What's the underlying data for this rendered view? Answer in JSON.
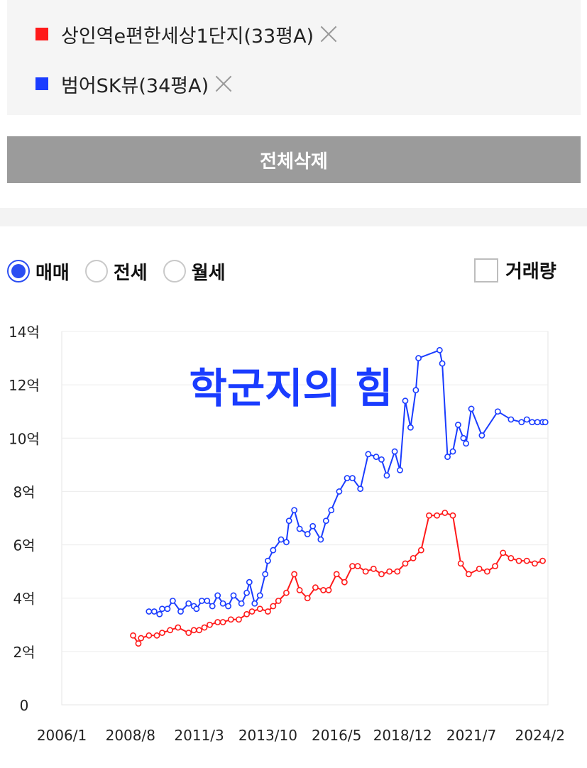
{
  "compare": {
    "items": [
      {
        "label": "상인역e편한세상1단지(33평A)",
        "color": "#ff1a1a"
      },
      {
        "label": "범어SK뷰(34평A)",
        "color": "#1a3cff"
      }
    ]
  },
  "actions": {
    "delete_all": "전체삭제"
  },
  "filters": {
    "radios": [
      {
        "label": "매매",
        "selected": true
      },
      {
        "label": "전세",
        "selected": false
      },
      {
        "label": "월세",
        "selected": false
      }
    ],
    "volume_label": "거래량"
  },
  "chart_data": {
    "type": "line",
    "title": "학군지의 힘",
    "title_color": "#1a3cff",
    "ylim": [
      0,
      14
    ],
    "y_ticks": [
      0,
      2,
      4,
      6,
      8,
      10,
      12,
      14
    ],
    "y_tick_labels": [
      "0",
      "2억",
      "4억",
      "6억",
      "8억",
      "10억",
      "12억",
      "14억"
    ],
    "xlim": [
      2006.0,
      2024.4
    ],
    "x_ticks": [
      2006.0,
      2008.6,
      2011.2,
      2013.8,
      2016.4,
      2018.9,
      2021.5,
      2024.1
    ],
    "x_tick_labels": [
      "2006/1",
      "2008/8",
      "2011/3",
      "2013/10",
      "2016/5",
      "2018/12",
      "2021/7",
      "2024/2"
    ],
    "grid": true,
    "series": [
      {
        "name": "범어SK뷰(34평A)",
        "color": "#1a3cff",
        "x": [
          2009.3,
          2009.5,
          2009.7,
          2009.8,
          2010.0,
          2010.2,
          2010.5,
          2010.8,
          2011.0,
          2011.1,
          2011.3,
          2011.5,
          2011.7,
          2011.9,
          2012.1,
          2012.3,
          2012.5,
          2012.8,
          2013.0,
          2013.1,
          2013.3,
          2013.5,
          2013.7,
          2013.8,
          2014.0,
          2014.3,
          2014.5,
          2014.6,
          2014.8,
          2015.0,
          2015.3,
          2015.5,
          2015.8,
          2016.0,
          2016.2,
          2016.5,
          2016.8,
          2017.0,
          2017.3,
          2017.6,
          2017.9,
          2018.1,
          2018.3,
          2018.6,
          2018.8,
          2019.0,
          2019.2,
          2019.4,
          2019.5,
          2020.3,
          2020.4,
          2020.6,
          2020.8,
          2021.0,
          2021.2,
          2021.3,
          2021.5,
          2021.9,
          2022.5,
          2023.0,
          2023.4,
          2023.6,
          2023.8,
          2024.0,
          2024.2,
          2024.3
        ],
        "y": [
          3.5,
          3.5,
          3.4,
          3.6,
          3.6,
          3.9,
          3.5,
          3.8,
          3.7,
          3.6,
          3.9,
          3.9,
          3.7,
          4.1,
          3.8,
          3.7,
          4.1,
          3.8,
          4.2,
          4.6,
          3.8,
          4.1,
          4.9,
          5.4,
          5.8,
          6.2,
          6.1,
          6.9,
          7.3,
          6.6,
          6.4,
          6.7,
          6.2,
          6.9,
          7.3,
          8.0,
          8.5,
          8.5,
          8.1,
          9.4,
          9.3,
          9.2,
          8.6,
          9.5,
          8.8,
          11.4,
          10.4,
          11.8,
          13.0,
          13.3,
          12.8,
          9.3,
          9.5,
          10.5,
          10.0,
          9.8,
          11.1,
          10.1,
          11.0,
          10.7,
          10.6,
          10.7,
          10.6,
          10.6,
          10.6,
          10.6
        ],
        "y_source": "estimated"
      },
      {
        "name": "상인역e편한세상1단지(33평A)",
        "color": "#ff1a1a",
        "x": [
          2008.7,
          2008.9,
          2009.0,
          2009.3,
          2009.6,
          2009.8,
          2010.1,
          2010.4,
          2010.8,
          2011.0,
          2011.2,
          2011.4,
          2011.6,
          2011.9,
          2012.1,
          2012.4,
          2012.7,
          2013.0,
          2013.2,
          2013.5,
          2013.8,
          2014.0,
          2014.2,
          2014.5,
          2014.8,
          2015.0,
          2015.3,
          2015.6,
          2015.9,
          2016.1,
          2016.4,
          2016.7,
          2017.0,
          2017.2,
          2017.5,
          2017.8,
          2018.1,
          2018.4,
          2018.7,
          2019.0,
          2019.3,
          2019.6,
          2019.9,
          2020.2,
          2020.5,
          2020.8,
          2021.1,
          2021.4,
          2021.8,
          2022.1,
          2022.4,
          2022.7,
          2023.0,
          2023.3,
          2023.6,
          2023.9,
          2024.2
        ],
        "y": [
          2.6,
          2.3,
          2.5,
          2.6,
          2.6,
          2.7,
          2.8,
          2.9,
          2.7,
          2.8,
          2.8,
          2.9,
          3.0,
          3.1,
          3.1,
          3.2,
          3.2,
          3.4,
          3.5,
          3.6,
          3.5,
          3.7,
          3.9,
          4.2,
          4.9,
          4.3,
          4.0,
          4.4,
          4.3,
          4.3,
          4.9,
          4.6,
          5.2,
          5.2,
          5.0,
          5.1,
          4.9,
          5.0,
          5.0,
          5.3,
          5.5,
          5.8,
          7.1,
          7.1,
          7.2,
          7.1,
          5.3,
          4.9,
          5.1,
          5.0,
          5.2,
          5.7,
          5.5,
          5.4,
          5.4,
          5.3,
          5.4
        ],
        "y_source": "estimated"
      }
    ]
  }
}
